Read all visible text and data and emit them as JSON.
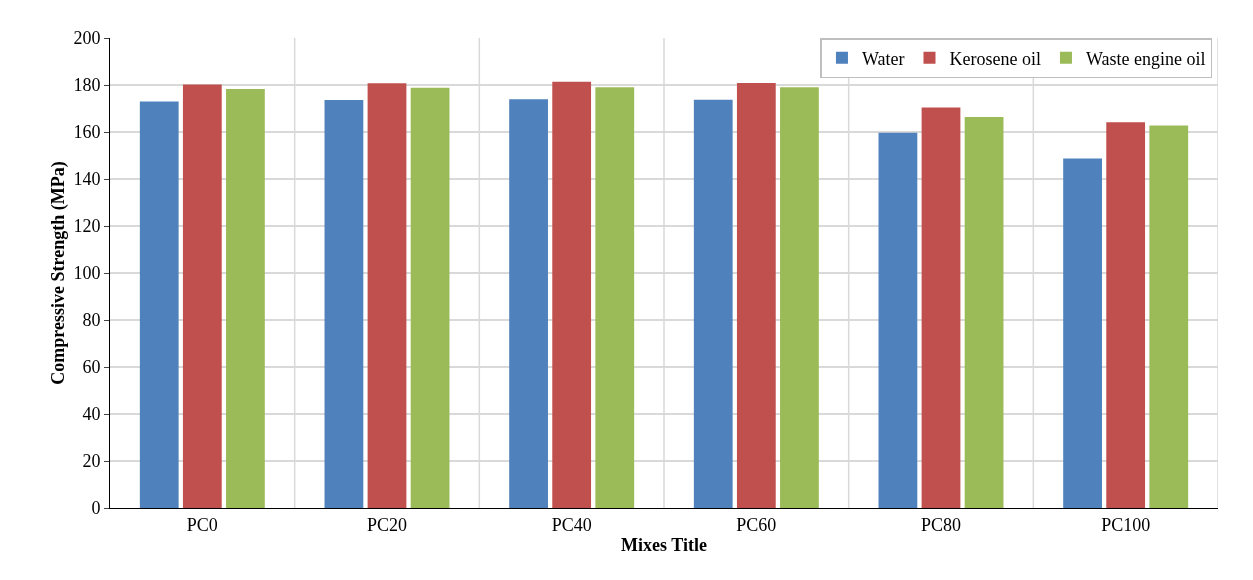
{
  "chart_data": {
    "type": "bar",
    "xlabel": "Mixes Title",
    "ylabel": "Compressive Strength (MPa)",
    "categories": [
      "PC0",
      "PC20",
      "PC40",
      "PC60",
      "PC80",
      "PC100"
    ],
    "series": [
      {
        "name": "Water",
        "color": "#4f81bd",
        "values": [
          173,
          173.6,
          173.9,
          173.7,
          159.7,
          148.7
        ]
      },
      {
        "name": "Kerosene oil",
        "color": "#c0504d",
        "values": [
          180.2,
          180.7,
          181.4,
          180.9,
          170.4,
          164.2
        ]
      },
      {
        "name": "Waste engine oil",
        "color": "#9bbb59",
        "values": [
          178.3,
          178.8,
          179,
          179,
          166.4,
          162.8
        ]
      }
    ],
    "ylim": [
      0,
      200
    ],
    "yticks": [
      0,
      20,
      40,
      60,
      80,
      100,
      120,
      140,
      160,
      180,
      200
    ],
    "grid": true,
    "legend": "top right"
  }
}
